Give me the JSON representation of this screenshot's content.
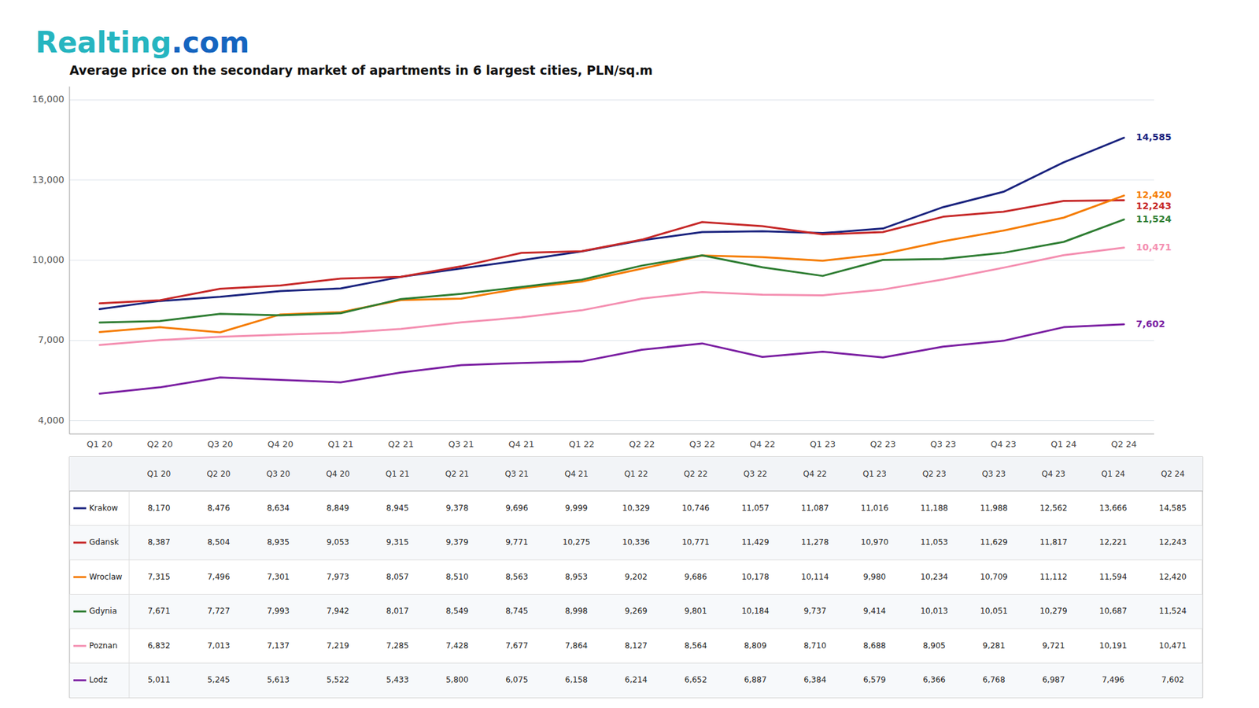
{
  "chart_data": {
    "type": "line",
    "title": "Average price on the secondary market of apartments in 6 largest cities, PLN/sq.m",
    "logo": [
      {
        "text": "Realting",
        "color": "#26b5c0"
      },
      {
        "text": ".com",
        "color": "#1565c0"
      }
    ],
    "categories": [
      "Q1 20",
      "Q2 20",
      "Q3 20",
      "Q4 20",
      "Q1 21",
      "Q2 21",
      "Q3 21",
      "Q4 21",
      "Q1 22",
      "Q2 22",
      "Q3 22",
      "Q4 22",
      "Q1 23",
      "Q2 23",
      "Q3 23",
      "Q4 23",
      "Q1 24",
      "Q2 24"
    ],
    "series": [
      {
        "name": "Krakow",
        "color": "#1a237e",
        "values": [
          8170,
          8476,
          8634,
          8849,
          8945,
          9378,
          9696,
          9999,
          10329,
          10746,
          11057,
          11087,
          11016,
          11188,
          11988,
          12562,
          13666,
          14585
        ],
        "value_labels": [
          "8,170",
          "8,476",
          "8,634",
          "8,849",
          "8,945",
          "9,378",
          "9,696",
          "9,999",
          "10,329",
          "10,746",
          "11,057",
          "11,087",
          "11,016",
          "11,188",
          "11,988",
          "12,562",
          "13,666",
          "14,585"
        ]
      },
      {
        "name": "Gdansk",
        "color": "#c62828",
        "values": [
          8387,
          8504,
          8935,
          9053,
          9315,
          9379,
          9771,
          10275,
          10336,
          10771,
          11429,
          11278,
          10970,
          11053,
          11629,
          11817,
          12221,
          12243
        ],
        "value_labels": [
          "8,387",
          "8,504",
          "8,935",
          "9,053",
          "9,315",
          "9,379",
          "9,771",
          "10,275",
          "10,336",
          "10,771",
          "11,429",
          "11,278",
          "10,970",
          "11,053",
          "11,629",
          "11,817",
          "12,221",
          "12,243"
        ]
      },
      {
        "name": "Wroclaw",
        "color": "#f57c00",
        "values": [
          7315,
          7496,
          7301,
          7973,
          8057,
          8510,
          8563,
          8953,
          9202,
          9686,
          10178,
          10114,
          9980,
          10234,
          10709,
          11112,
          11594,
          12420
        ],
        "value_labels": [
          "7,315",
          "7,496",
          "7,301",
          "7,973",
          "8,057",
          "8,510",
          "8,563",
          "8,953",
          "9,202",
          "9,686",
          "10,178",
          "10,114",
          "9,980",
          "10,234",
          "10,709",
          "11,112",
          "11,594",
          "12,420"
        ]
      },
      {
        "name": "Gdynia",
        "color": "#2e7d32",
        "values": [
          7671,
          7727,
          7993,
          7942,
          8017,
          8549,
          8745,
          8998,
          9269,
          9801,
          10184,
          9737,
          9414,
          10013,
          10051,
          10279,
          10687,
          11524
        ],
        "value_labels": [
          "7,671",
          "7,727",
          "7,993",
          "7,942",
          "8,017",
          "8,549",
          "8,745",
          "8,998",
          "9,269",
          "9,801",
          "10,184",
          "9,737",
          "9,414",
          "10,013",
          "10,051",
          "10,279",
          "10,687",
          "11,524"
        ]
      },
      {
        "name": "Poznan",
        "color": "#f48fb1",
        "values": [
          6832,
          7013,
          7137,
          7219,
          7285,
          7428,
          7677,
          7864,
          8127,
          8564,
          8809,
          8710,
          8688,
          8905,
          9281,
          9721,
          10191,
          10471
        ],
        "value_labels": [
          "6,832",
          "7,013",
          "7,137",
          "7,219",
          "7,285",
          "7,428",
          "7,677",
          "7,864",
          "8,127",
          "8,564",
          "8,809",
          "8,710",
          "8,688",
          "8,905",
          "9,281",
          "9,721",
          "10,191",
          "10,471"
        ]
      },
      {
        "name": "Lodz",
        "color": "#7b1fa2",
        "values": [
          5011,
          5245,
          5613,
          5522,
          5433,
          5800,
          6075,
          6158,
          6214,
          6652,
          6887,
          6384,
          6579,
          6366,
          6768,
          6987,
          7496,
          7602
        ],
        "value_labels": [
          "5,011",
          "5,245",
          "5,613",
          "5,522",
          "5,433",
          "5,800",
          "6,075",
          "6,158",
          "6,214",
          "6,652",
          "6,887",
          "6,384",
          "6,579",
          "6,366",
          "6,768",
          "6,987",
          "7,496",
          "7,602"
        ]
      }
    ],
    "annotations": [
      {
        "text": "14,585",
        "x": "Q2 24",
        "y": 14585,
        "series": "Krakow"
      },
      {
        "text": "12,243",
        "x": "Q2 24",
        "y": 12243,
        "series": "Gdansk"
      },
      {
        "text": "12,420",
        "x": "Q2 24",
        "y": 12420,
        "series": "Wroclaw"
      },
      {
        "text": "11,524",
        "x": "Q2 24",
        "y": 11524,
        "series": "Gdynia"
      },
      {
        "text": "10,471",
        "x": "Q2 24",
        "y": 10471,
        "series": "Poznan"
      },
      {
        "text": "7,602",
        "x": "Q2 24",
        "y": 7602,
        "series": "Lodz"
      }
    ],
    "ylim": [
      3500,
      16500
    ],
    "yticks": [
      {
        "value": 4000,
        "label": "4,000"
      },
      {
        "value": 7000,
        "label": "7,000"
      },
      {
        "value": 10000,
        "label": "10,000"
      },
      {
        "value": 13000,
        "label": "13,000"
      },
      {
        "value": 16000,
        "label": "16,000"
      }
    ],
    "grid": true
  }
}
